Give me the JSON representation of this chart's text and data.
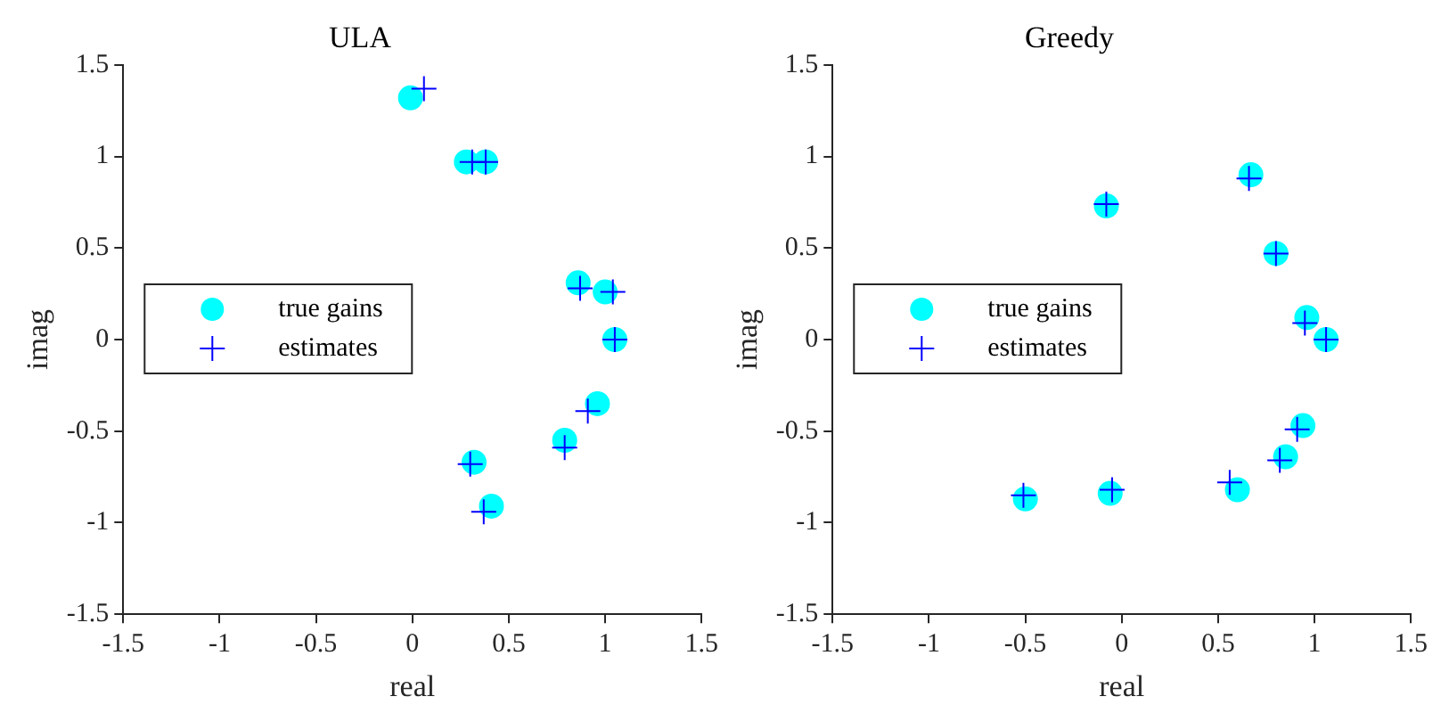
{
  "chart_data": [
    {
      "type": "scatter",
      "title": "ULA",
      "xlabel": "real",
      "ylabel": "imag",
      "xlim": [
        -1.5,
        1.5
      ],
      "xticks": [
        -1.5,
        -1,
        -0.5,
        0,
        0.5,
        1,
        1.5
      ],
      "ylim": [
        -1.5,
        1.5
      ],
      "yticks": [
        -1.5,
        -1,
        -0.5,
        0,
        0.5,
        1,
        1.5
      ],
      "grid": false,
      "legend": "left",
      "series": [
        {
          "name": "true gains",
          "color": "#00ffff",
          "marker": "circle",
          "x": [
            -0.01,
            0.28,
            0.38,
            0.86,
            1.0,
            1.05,
            0.96,
            0.79,
            0.32,
            0.41
          ],
          "values": [
            1.32,
            0.97,
            0.97,
            0.31,
            0.26,
            0,
            -0.35,
            -0.55,
            -0.67,
            -0.91
          ]
        },
        {
          "name": "estimates",
          "color": "#0000ff",
          "marker": "cross",
          "x": [
            0.06,
            0.31,
            0.38,
            0.87,
            1.04,
            1.05,
            0.91,
            0.79,
            0.3,
            0.37
          ],
          "values": [
            1.37,
            0.97,
            0.97,
            0.28,
            0.26,
            0,
            -0.39,
            -0.59,
            -0.68,
            -0.94
          ]
        }
      ]
    },
    {
      "type": "scatter",
      "title": "Greedy",
      "xlabel": "real",
      "ylabel": "imag",
      "xlim": [
        -1.5,
        1.5
      ],
      "xticks": [
        -1.5,
        -1,
        -0.5,
        0,
        0.5,
        1,
        1.5
      ],
      "ylim": [
        -1.5,
        1.5
      ],
      "yticks": [
        -1.5,
        -1,
        -0.5,
        0,
        0.5,
        1,
        1.5
      ],
      "grid": false,
      "legend": "left",
      "series": [
        {
          "name": "true gains",
          "color": "#00ffff",
          "marker": "circle",
          "x": [
            -0.08,
            0.67,
            0.8,
            0.96,
            1.06,
            0.94,
            0.85,
            0.6,
            -0.06,
            -0.5
          ],
          "values": [
            0.73,
            0.9,
            0.47,
            0.12,
            0,
            -0.47,
            -0.64,
            -0.82,
            -0.84,
            -0.87
          ]
        },
        {
          "name": "estimates",
          "color": "#0000ff",
          "marker": "cross",
          "x": [
            -0.08,
            0.66,
            0.8,
            0.95,
            1.06,
            0.91,
            0.82,
            0.56,
            -0.05,
            -0.51
          ],
          "values": [
            0.74,
            0.88,
            0.47,
            0.09,
            0,
            -0.49,
            -0.66,
            -0.78,
            -0.82,
            -0.85
          ]
        }
      ]
    }
  ]
}
